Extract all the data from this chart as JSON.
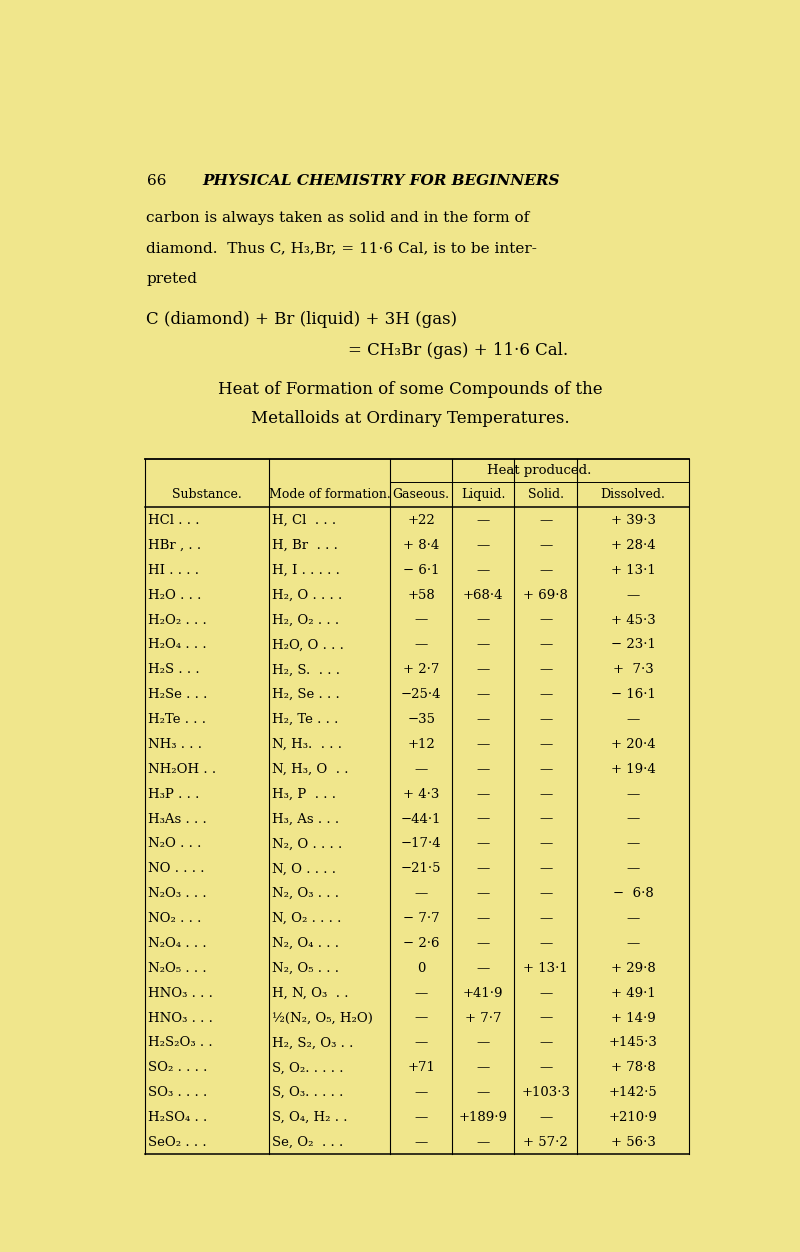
{
  "bg_color": "#f0e68c",
  "page_num": "66",
  "header_text": "PHYSICAL CHEMISTRY FOR BEGINNERS",
  "body_lines": [
    "carbon is always taken as solid and in the form of",
    "diamond.  Thus C, H₃,Br, = 11·6 Cal, is to be inter-",
    "preted"
  ],
  "formula_line1": "C (diamond) + Br (liquid) + 3H (gas)",
  "formula_line2": "= CH₃Br (gas) + 11·6 Cal.",
  "table_title1": "Heat of Formation of some Compounds of the",
  "table_title2": "Metalloids at Ordinary Temperatures.",
  "heat_produced_header": "Heat produced.",
  "col_headers": [
    "Substance.",
    "Mode of formation.",
    "Gaseous.",
    "Liquid.",
    "Solid.",
    "Dissolved."
  ],
  "rows": [
    [
      "HCl . . .",
      "H, Cl  . . .",
      "+22",
      "—",
      "—",
      "+ 39·3"
    ],
    [
      "HBr , . .",
      "H, Br  . . .",
      "+ 8·4",
      "—",
      "—",
      "+ 28·4"
    ],
    [
      "HI . . . .",
      "H, I . . . . .",
      "− 6·1",
      "—",
      "—",
      "+ 13·1"
    ],
    [
      "H₂O . . .",
      "H₂, O . . . .",
      "+58",
      "+68·4",
      "+ 69·8",
      "—"
    ],
    [
      "H₂O₂ . . .",
      "H₂, O₂ . . .",
      "—",
      "—",
      "—",
      "+ 45·3"
    ],
    [
      "H₂O₄ . . .",
      "H₂O, O . . .",
      "—",
      "—",
      "—",
      "− 23·1"
    ],
    [
      "H₂S . . .",
      "H₂, S.  . . .",
      "+ 2·7",
      "—",
      "—",
      "+  7·3"
    ],
    [
      "H₂Se . . .",
      "H₂, Se . . .",
      "−25·4",
      "—",
      "—",
      "− 16·1"
    ],
    [
      "H₂Te . . .",
      "H₂, Te . . .",
      "−35",
      "—",
      "—",
      "—"
    ],
    [
      "NH₃ . . .",
      "N, H₃.  . . .",
      "+12",
      "—",
      "—",
      "+ 20·4"
    ],
    [
      "NH₂OH . .",
      "N, H₃, O  . .",
      "—",
      "—",
      "—",
      "+ 19·4"
    ],
    [
      "H₃P . . .",
      "H₃, P  . . .",
      "+ 4·3",
      "—",
      "—",
      "—"
    ],
    [
      "H₃As . . .",
      "H₃, As . . .",
      "−44·1",
      "—",
      "—",
      "—"
    ],
    [
      "N₂O . . .",
      "N₂, O . . . .",
      "−17·4",
      "—",
      "—",
      "—"
    ],
    [
      "NO . . . .",
      "N, O . . . .",
      "−21·5",
      "—",
      "—",
      "—"
    ],
    [
      "N₂O₃ . . .",
      "N₂, O₃ . . .",
      "—",
      "—",
      "—",
      "−  6·8"
    ],
    [
      "NO₂ . . .",
      "N, O₂ . . . .",
      "− 7·7",
      "—",
      "—",
      "—"
    ],
    [
      "N₂O₄ . . .",
      "N₂, O₄ . . .",
      "− 2·6",
      "—",
      "—",
      "—"
    ],
    [
      "N₂O₅ . . .",
      "N₂, O₅ . . .",
      "0",
      "—",
      "+ 13·1",
      "+ 29·8"
    ],
    [
      "HNO₃ . . .",
      "H, N, O₃  . .",
      "—",
      "+41·9",
      "—",
      "+ 49·1"
    ],
    [
      "HNO₃ . . .",
      "½(N₂, O₅, H₂O)",
      "—",
      "+ 7·7",
      "—",
      "+ 14·9"
    ],
    [
      "H₂S₂O₃ . .",
      "H₂, S₂, O₃ . .",
      "—",
      "—",
      "—",
      "+145·3"
    ],
    [
      "SO₂ . . . .",
      "S, O₂. . . . .",
      "+71",
      "—",
      "—",
      "+ 78·8"
    ],
    [
      "SO₃ . . . .",
      "S, O₃. . . . .",
      "—",
      "—",
      "+103·3",
      "+142·5"
    ],
    [
      "H₂SO₄ . .",
      "S, O₄, H₂ . .",
      "—",
      "+189·9",
      "—",
      "+210·9"
    ],
    [
      "SeO₂ . . .",
      "Se, O₂  . . .",
      "—",
      "—",
      "+ 57·2",
      "+ 56·3"
    ]
  ]
}
